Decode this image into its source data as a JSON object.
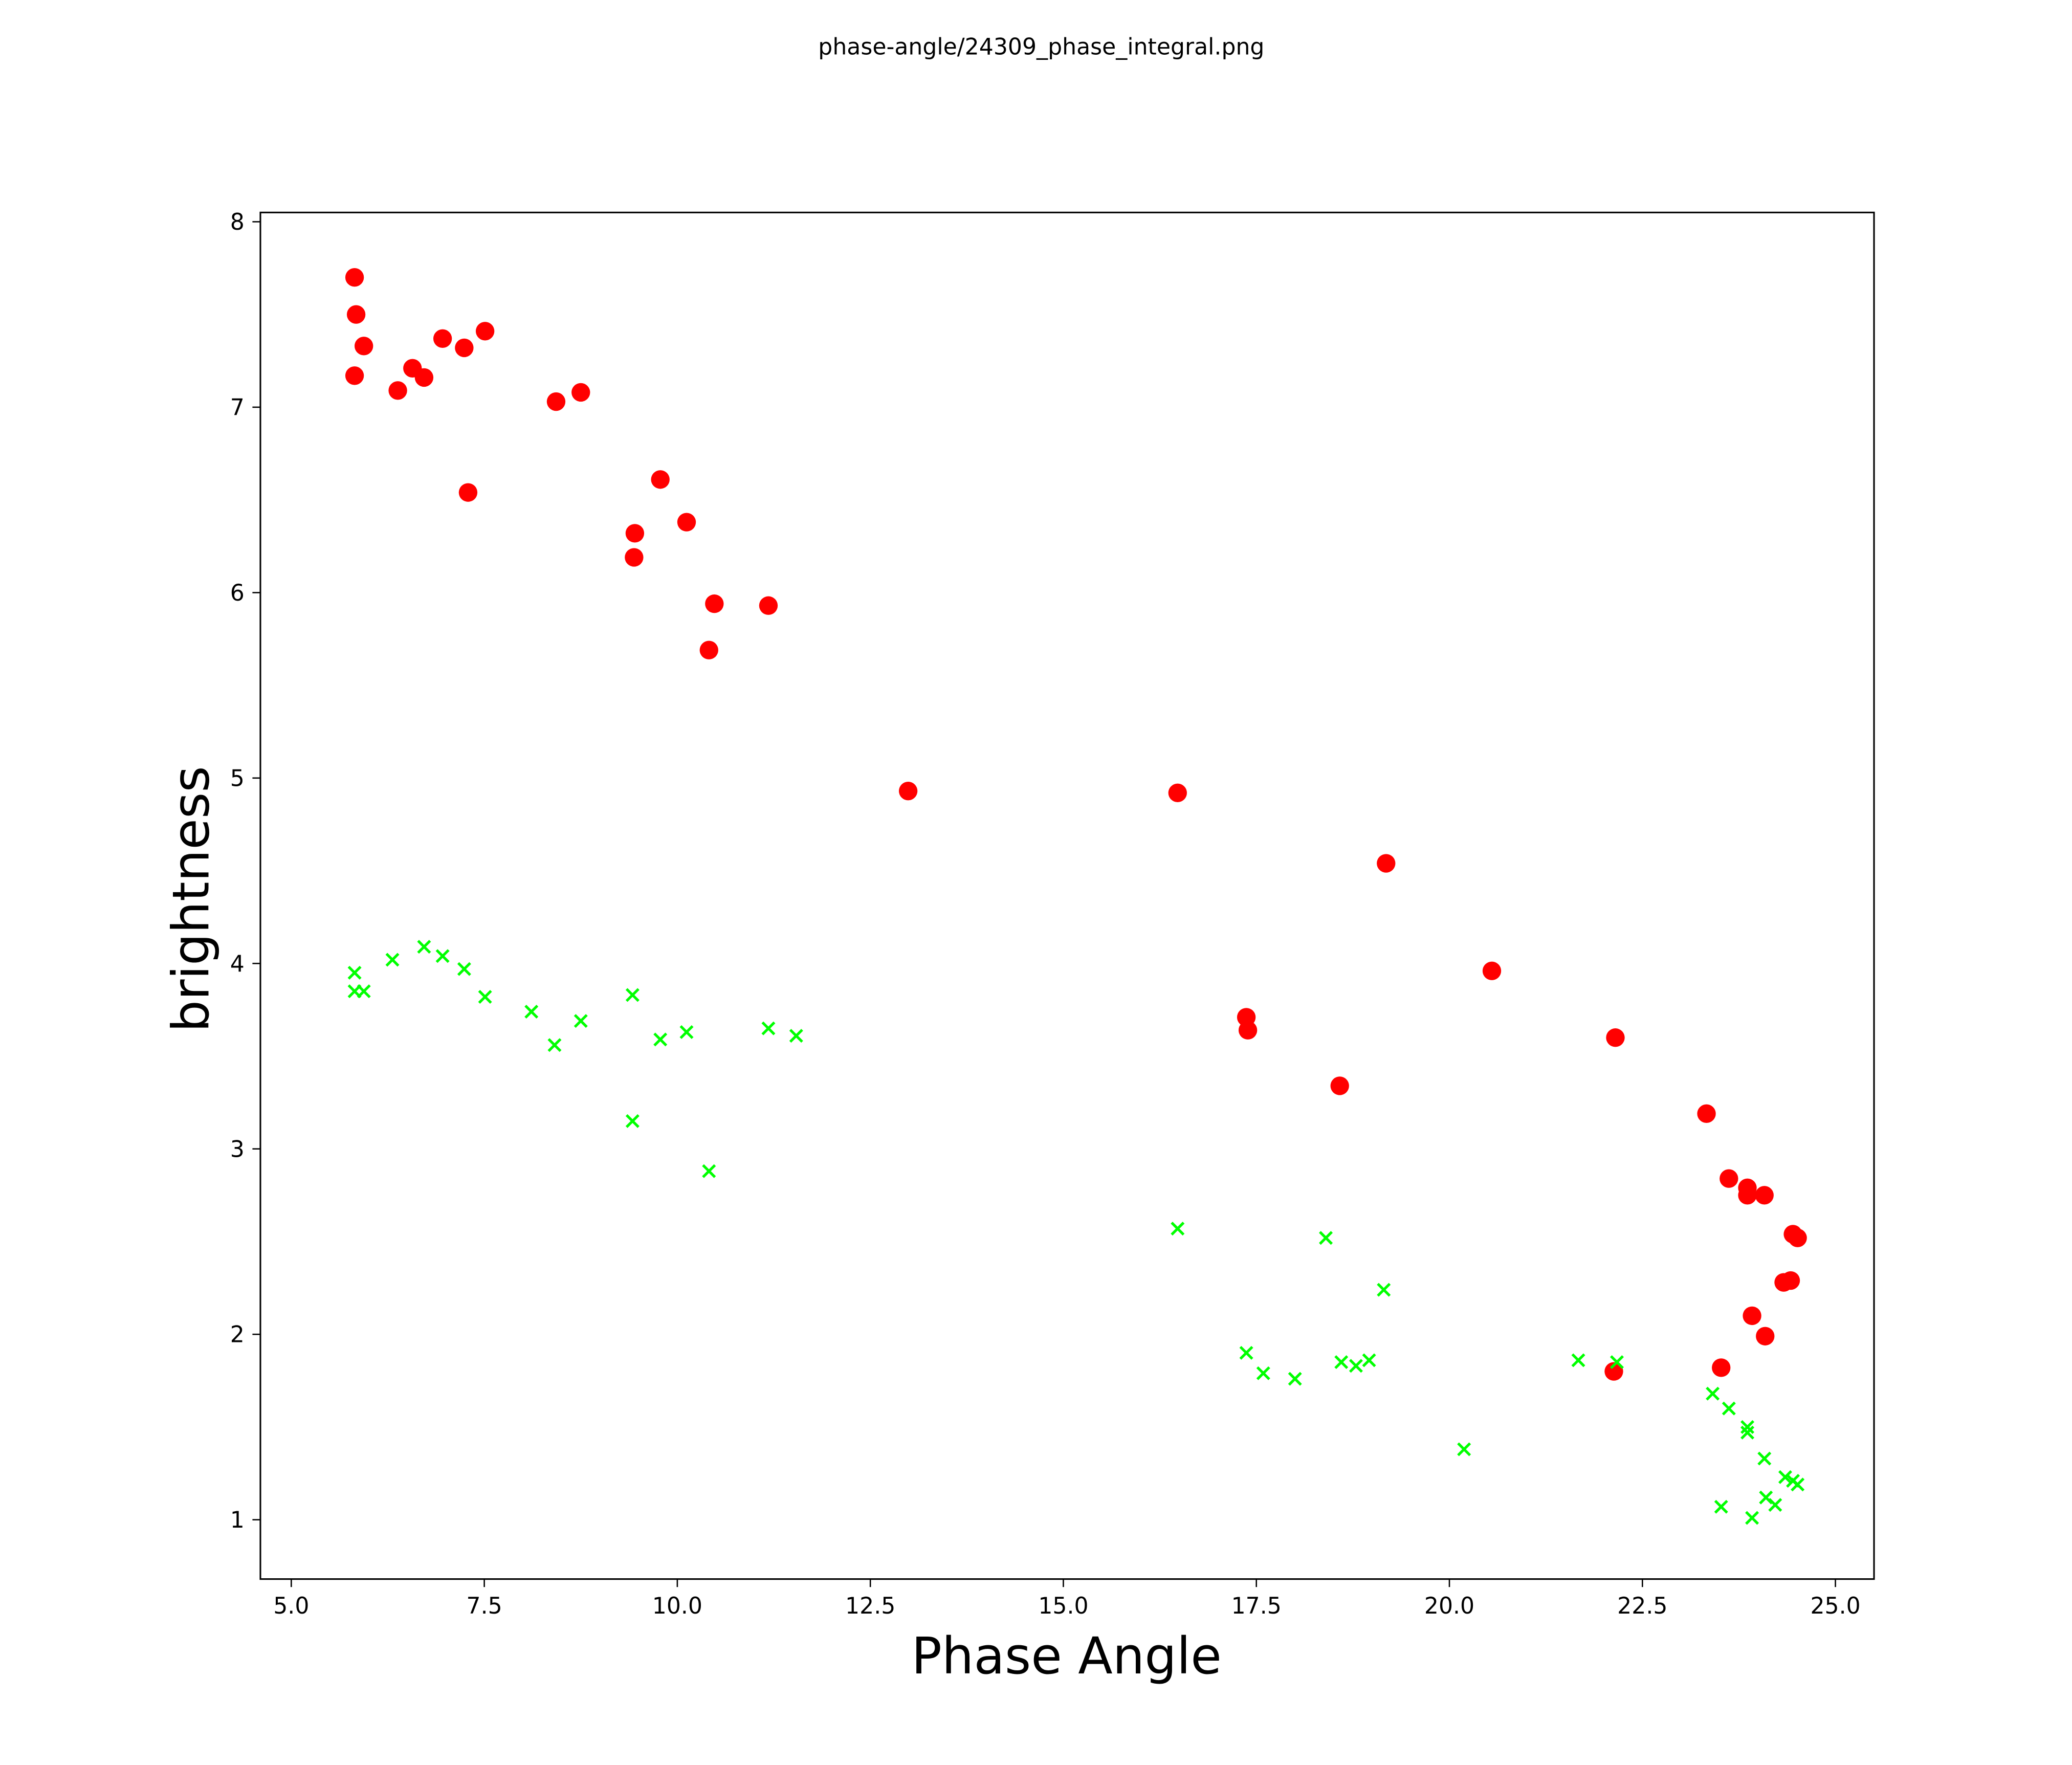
{
  "chart_data": {
    "type": "scatter",
    "title": "phase-angle/24309_phase_integral.png",
    "xlabel": "Phase Angle",
    "ylabel": "brightness",
    "xlim": [
      4.6,
      25.5
    ],
    "ylim": [
      0.68,
      8.05
    ],
    "xticks": [
      5.0,
      7.5,
      10.0,
      12.5,
      15.0,
      17.5,
      20.0,
      22.5,
      25.0
    ],
    "xtick_labels": [
      "5.0",
      "7.5",
      "10.0",
      "12.5",
      "15.0",
      "17.5",
      "20.0",
      "22.5",
      "25.0"
    ],
    "yticks": [
      1,
      2,
      3,
      4,
      5,
      6,
      7,
      8
    ],
    "ytick_labels": [
      "1",
      "2",
      "3",
      "4",
      "5",
      "6",
      "7",
      "8"
    ],
    "grid": false,
    "series": [
      {
        "name": "red circles",
        "marker": "circle",
        "color": "#ff0000",
        "points": [
          [
            5.82,
            7.7
          ],
          [
            5.84,
            7.5
          ],
          [
            5.94,
            7.33
          ],
          [
            5.82,
            7.17
          ],
          [
            6.38,
            7.09
          ],
          [
            6.57,
            7.21
          ],
          [
            6.72,
            7.16
          ],
          [
            6.96,
            7.37
          ],
          [
            7.24,
            7.32
          ],
          [
            7.51,
            7.41
          ],
          [
            7.29,
            6.54
          ],
          [
            8.43,
            7.03
          ],
          [
            8.75,
            7.08
          ],
          [
            9.45,
            6.32
          ],
          [
            9.44,
            6.19
          ],
          [
            9.78,
            6.61
          ],
          [
            10.12,
            6.38
          ],
          [
            10.48,
            5.94
          ],
          [
            10.41,
            5.69
          ],
          [
            11.18,
            5.93
          ],
          [
            12.99,
            4.93
          ],
          [
            16.48,
            4.92
          ],
          [
            19.18,
            4.54
          ],
          [
            17.37,
            3.71
          ],
          [
            17.39,
            3.64
          ],
          [
            20.55,
            3.96
          ],
          [
            18.58,
            3.34
          ],
          [
            22.15,
            3.6
          ],
          [
            23.33,
            3.19
          ],
          [
            23.62,
            2.84
          ],
          [
            23.86,
            2.79
          ],
          [
            23.86,
            2.75
          ],
          [
            24.08,
            2.75
          ],
          [
            24.45,
            2.54
          ],
          [
            24.51,
            2.52
          ],
          [
            24.33,
            2.28
          ],
          [
            24.42,
            2.29
          ],
          [
            23.92,
            2.1
          ],
          [
            24.09,
            1.99
          ],
          [
            23.52,
            1.82
          ],
          [
            22.13,
            1.8
          ]
        ]
      },
      {
        "name": "green crosses",
        "marker": "x",
        "color": "#00ff00",
        "points": [
          [
            5.82,
            3.95
          ],
          [
            5.82,
            3.85
          ],
          [
            5.94,
            3.85
          ],
          [
            6.31,
            4.02
          ],
          [
            6.72,
            4.09
          ],
          [
            6.96,
            4.04
          ],
          [
            7.24,
            3.97
          ],
          [
            7.51,
            3.82
          ],
          [
            8.11,
            3.74
          ],
          [
            8.41,
            3.56
          ],
          [
            8.75,
            3.69
          ],
          [
            9.42,
            3.83
          ],
          [
            9.42,
            3.15
          ],
          [
            9.78,
            3.59
          ],
          [
            10.12,
            3.63
          ],
          [
            10.41,
            2.88
          ],
          [
            11.18,
            3.65
          ],
          [
            11.54,
            3.61
          ],
          [
            16.48,
            2.57
          ],
          [
            18.4,
            2.52
          ],
          [
            19.15,
            2.24
          ],
          [
            17.37,
            1.9
          ],
          [
            17.59,
            1.79
          ],
          [
            18.0,
            1.76
          ],
          [
            18.6,
            1.85
          ],
          [
            18.79,
            1.83
          ],
          [
            18.96,
            1.86
          ],
          [
            20.19,
            1.38
          ],
          [
            21.67,
            1.86
          ],
          [
            22.17,
            1.85
          ],
          [
            23.41,
            1.68
          ],
          [
            23.62,
            1.6
          ],
          [
            23.86,
            1.5
          ],
          [
            23.86,
            1.47
          ],
          [
            24.08,
            1.33
          ],
          [
            24.35,
            1.23
          ],
          [
            24.45,
            1.21
          ],
          [
            24.51,
            1.19
          ],
          [
            24.1,
            1.12
          ],
          [
            24.22,
            1.08
          ],
          [
            23.52,
            1.07
          ],
          [
            23.92,
            1.01
          ]
        ]
      }
    ]
  }
}
